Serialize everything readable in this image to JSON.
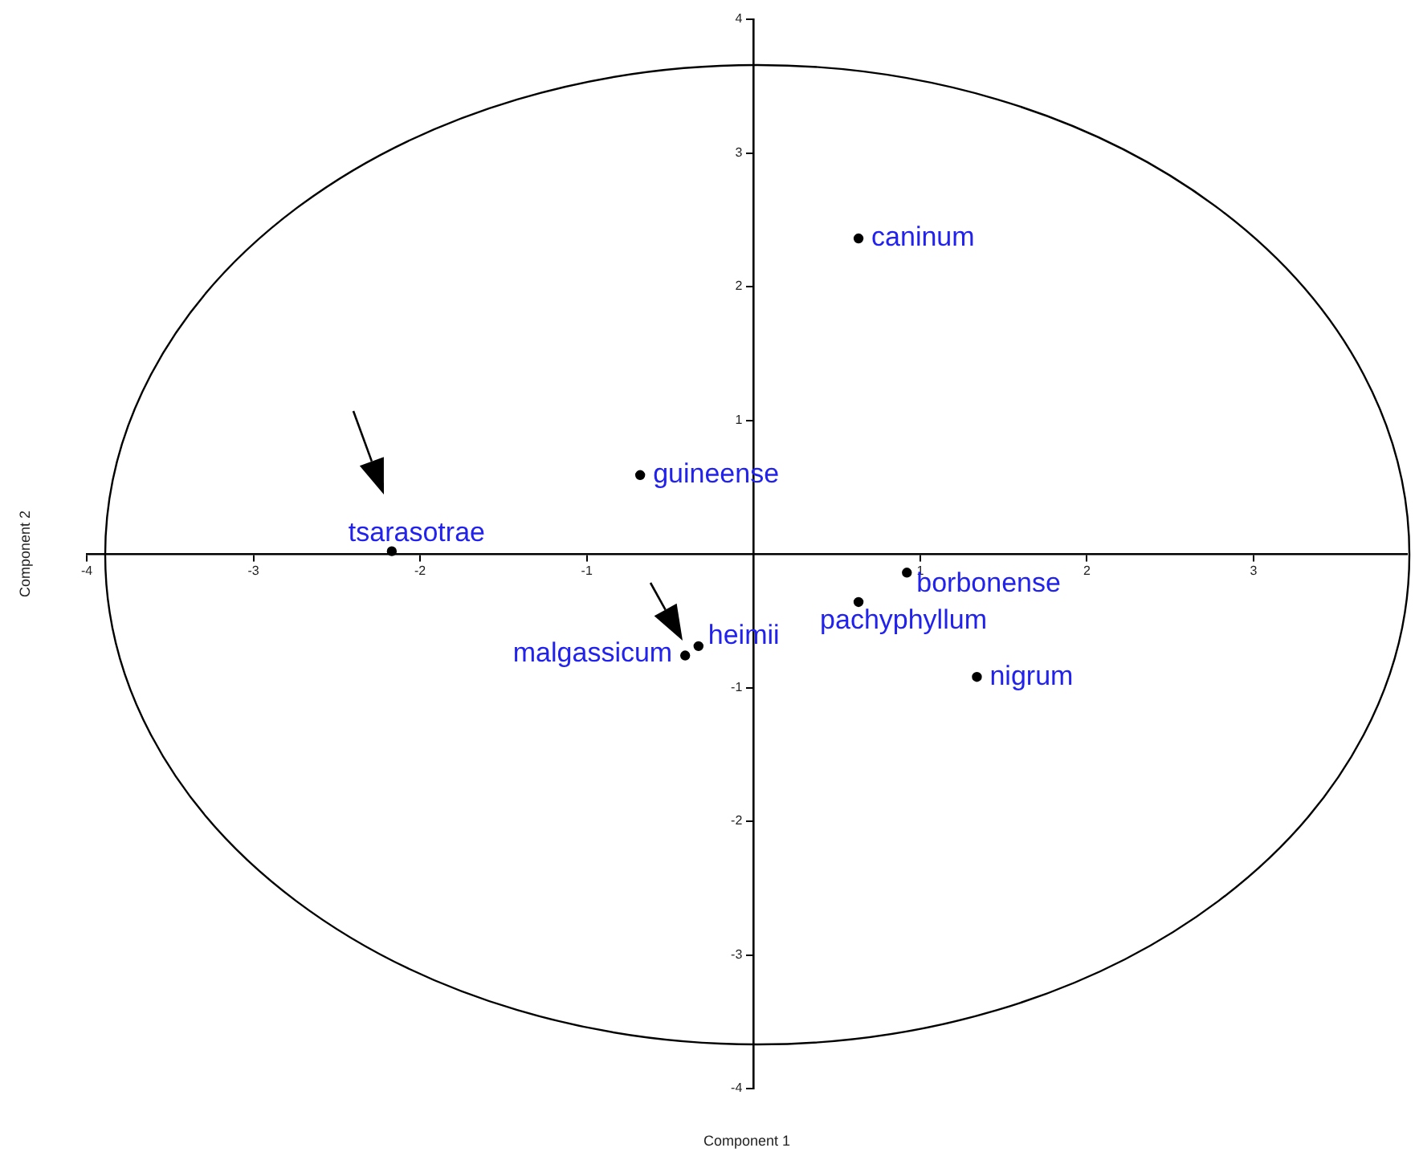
{
  "chart_data": {
    "type": "scatter",
    "xlabel": "Component 1",
    "ylabel": "Component 2",
    "series": [
      {
        "color": "#000000",
        "x": [
          0.63,
          -0.68,
          -2.17,
          0.92,
          0.63,
          -0.33,
          -0.41,
          1.34
        ],
        "values": [
          2.36,
          0.59,
          0.02,
          -0.14,
          -0.36,
          -0.69,
          -0.76,
          -0.92
        ]
      }
    ],
    "xlim": [
      -4,
      3.92
    ],
    "ylim": [
      -4,
      4
    ],
    "xticks": [
      -4,
      -3,
      -2,
      -1,
      1,
      2,
      3
    ],
    "yticks": [
      -4,
      -3,
      -2,
      -1,
      1,
      2,
      3,
      4
    ],
    "grid": false,
    "legend": false,
    "marker": "circle",
    "annotations": [
      {
        "text": "caninum",
        "x": 0.63,
        "y": 2.36
      },
      {
        "text": "guineense",
        "x": -0.68,
        "y": 0.59
      },
      {
        "text": "tsarasotrae",
        "x": -2.17,
        "y": 0.02
      },
      {
        "text": "borbonense",
        "x": 0.92,
        "y": -0.14
      },
      {
        "text": "pachyphyllum",
        "x": 0.63,
        "y": -0.36
      },
      {
        "text": "heimii",
        "x": -0.33,
        "y": -0.69
      },
      {
        "text": "malgassicum",
        "x": -0.41,
        "y": -0.76
      },
      {
        "text": "nigrum",
        "x": 1.34,
        "y": -0.92
      }
    ]
  }
}
